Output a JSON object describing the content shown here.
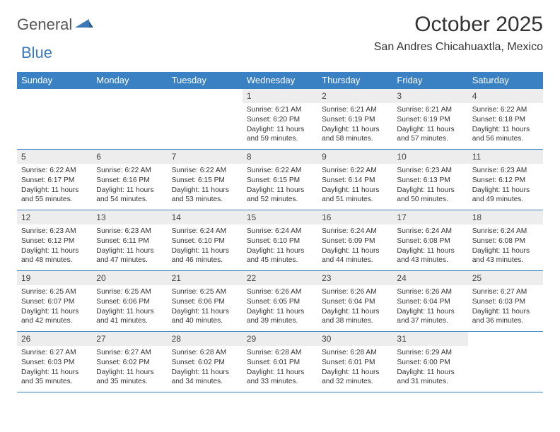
{
  "logo": {
    "part1": "General",
    "part2": "Blue"
  },
  "title": "October 2025",
  "location": "San Andres Chicahuaxtla, Mexico",
  "colors": {
    "header_bg": "#3a81c4",
    "header_fg": "#ffffff",
    "daynum_bg": "#ededed",
    "border": "#3a81c4",
    "logo_blue": "#3a7ab8",
    "text": "#333333"
  },
  "fonts": {
    "title_size": 30,
    "location_size": 16,
    "th_size": 13,
    "daynum_size": 12,
    "body_size": 10.2
  },
  "dayHeaders": [
    "Sunday",
    "Monday",
    "Tuesday",
    "Wednesday",
    "Thursday",
    "Friday",
    "Saturday"
  ],
  "weeks": [
    [
      null,
      null,
      null,
      {
        "n": "1",
        "sunrise": "6:21 AM",
        "sunset": "6:20 PM",
        "daylight": "11 hours and 59 minutes."
      },
      {
        "n": "2",
        "sunrise": "6:21 AM",
        "sunset": "6:19 PM",
        "daylight": "11 hours and 58 minutes."
      },
      {
        "n": "3",
        "sunrise": "6:21 AM",
        "sunset": "6:19 PM",
        "daylight": "11 hours and 57 minutes."
      },
      {
        "n": "4",
        "sunrise": "6:22 AM",
        "sunset": "6:18 PM",
        "daylight": "11 hours and 56 minutes."
      }
    ],
    [
      {
        "n": "5",
        "sunrise": "6:22 AM",
        "sunset": "6:17 PM",
        "daylight": "11 hours and 55 minutes."
      },
      {
        "n": "6",
        "sunrise": "6:22 AM",
        "sunset": "6:16 PM",
        "daylight": "11 hours and 54 minutes."
      },
      {
        "n": "7",
        "sunrise": "6:22 AM",
        "sunset": "6:15 PM",
        "daylight": "11 hours and 53 minutes."
      },
      {
        "n": "8",
        "sunrise": "6:22 AM",
        "sunset": "6:15 PM",
        "daylight": "11 hours and 52 minutes."
      },
      {
        "n": "9",
        "sunrise": "6:22 AM",
        "sunset": "6:14 PM",
        "daylight": "11 hours and 51 minutes."
      },
      {
        "n": "10",
        "sunrise": "6:23 AM",
        "sunset": "6:13 PM",
        "daylight": "11 hours and 50 minutes."
      },
      {
        "n": "11",
        "sunrise": "6:23 AM",
        "sunset": "6:12 PM",
        "daylight": "11 hours and 49 minutes."
      }
    ],
    [
      {
        "n": "12",
        "sunrise": "6:23 AM",
        "sunset": "6:12 PM",
        "daylight": "11 hours and 48 minutes."
      },
      {
        "n": "13",
        "sunrise": "6:23 AM",
        "sunset": "6:11 PM",
        "daylight": "11 hours and 47 minutes."
      },
      {
        "n": "14",
        "sunrise": "6:24 AM",
        "sunset": "6:10 PM",
        "daylight": "11 hours and 46 minutes."
      },
      {
        "n": "15",
        "sunrise": "6:24 AM",
        "sunset": "6:10 PM",
        "daylight": "11 hours and 45 minutes."
      },
      {
        "n": "16",
        "sunrise": "6:24 AM",
        "sunset": "6:09 PM",
        "daylight": "11 hours and 44 minutes."
      },
      {
        "n": "17",
        "sunrise": "6:24 AM",
        "sunset": "6:08 PM",
        "daylight": "11 hours and 43 minutes."
      },
      {
        "n": "18",
        "sunrise": "6:24 AM",
        "sunset": "6:08 PM",
        "daylight": "11 hours and 43 minutes."
      }
    ],
    [
      {
        "n": "19",
        "sunrise": "6:25 AM",
        "sunset": "6:07 PM",
        "daylight": "11 hours and 42 minutes."
      },
      {
        "n": "20",
        "sunrise": "6:25 AM",
        "sunset": "6:06 PM",
        "daylight": "11 hours and 41 minutes."
      },
      {
        "n": "21",
        "sunrise": "6:25 AM",
        "sunset": "6:06 PM",
        "daylight": "11 hours and 40 minutes."
      },
      {
        "n": "22",
        "sunrise": "6:26 AM",
        "sunset": "6:05 PM",
        "daylight": "11 hours and 39 minutes."
      },
      {
        "n": "23",
        "sunrise": "6:26 AM",
        "sunset": "6:04 PM",
        "daylight": "11 hours and 38 minutes."
      },
      {
        "n": "24",
        "sunrise": "6:26 AM",
        "sunset": "6:04 PM",
        "daylight": "11 hours and 37 minutes."
      },
      {
        "n": "25",
        "sunrise": "6:27 AM",
        "sunset": "6:03 PM",
        "daylight": "11 hours and 36 minutes."
      }
    ],
    [
      {
        "n": "26",
        "sunrise": "6:27 AM",
        "sunset": "6:03 PM",
        "daylight": "11 hours and 35 minutes."
      },
      {
        "n": "27",
        "sunrise": "6:27 AM",
        "sunset": "6:02 PM",
        "daylight": "11 hours and 35 minutes."
      },
      {
        "n": "28",
        "sunrise": "6:28 AM",
        "sunset": "6:02 PM",
        "daylight": "11 hours and 34 minutes."
      },
      {
        "n": "29",
        "sunrise": "6:28 AM",
        "sunset": "6:01 PM",
        "daylight": "11 hours and 33 minutes."
      },
      {
        "n": "30",
        "sunrise": "6:28 AM",
        "sunset": "6:01 PM",
        "daylight": "11 hours and 32 minutes."
      },
      {
        "n": "31",
        "sunrise": "6:29 AM",
        "sunset": "6:00 PM",
        "daylight": "11 hours and 31 minutes."
      },
      null
    ]
  ],
  "labels": {
    "sunrise": "Sunrise:",
    "sunset": "Sunset:",
    "daylight": "Daylight:"
  }
}
